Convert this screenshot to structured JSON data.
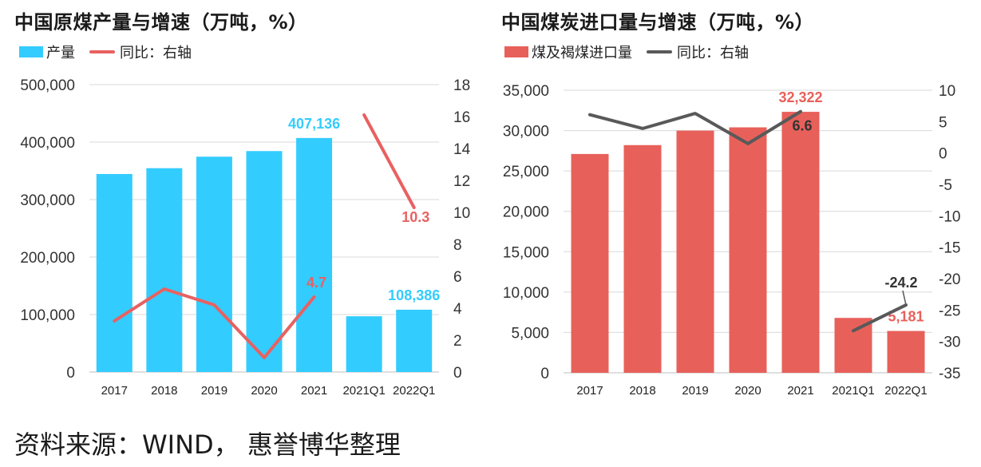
{
  "footer": "资料来源：WIND， 惠誉博华整理",
  "chart_data": [
    {
      "type": "bar",
      "title": "中国原煤产量与增速（万吨，%）",
      "categories": [
        "2017",
        "2018",
        "2019",
        "2020",
        "2021",
        "2021Q1",
        "2022Q1"
      ],
      "series": [
        {
          "name": "产量",
          "type": "bar",
          "axis": "left",
          "color": "#33ccff",
          "values": [
            344500,
            354600,
            374600,
            384400,
            407136,
            97000,
            108386
          ],
          "labels": {
            "4": "407,136",
            "6": "108,386"
          }
        },
        {
          "name": "同比：右轴",
          "type": "line",
          "axis": "right",
          "color": "#e86161",
          "segments": [
            [
              0,
              4
            ],
            [
              5,
              6
            ]
          ],
          "values": [
            3.2,
            5.2,
            4.2,
            0.9,
            4.7,
            16.1,
            10.3
          ],
          "labels": {
            "4": "4.7",
            "6": "10.3"
          }
        }
      ],
      "y_left": {
        "min": 0,
        "max": 500000,
        "ticks": [
          "0",
          "100,000",
          "200,000",
          "300,000",
          "400,000",
          "500,000"
        ]
      },
      "y_right": {
        "min": 0,
        "max": 18,
        "ticks": [
          "0",
          "2",
          "4",
          "6",
          "8",
          "10",
          "12",
          "14",
          "16",
          "18"
        ]
      },
      "grid": true,
      "legend": "top-left"
    },
    {
      "type": "bar",
      "title": "中国煤炭进口量与增速（万吨，%）",
      "categories": [
        "2017",
        "2018",
        "2019",
        "2020",
        "2021",
        "2021Q1",
        "2022Q1"
      ],
      "series": [
        {
          "name": "煤及褐煤进口量",
          "type": "bar",
          "axis": "left",
          "color": "#e8605a",
          "values": [
            27100,
            28200,
            30000,
            30400,
            32322,
            6800,
            5181
          ],
          "labels": {
            "4": "32,322",
            "6": "5,181"
          }
        },
        {
          "name": "同比：右轴",
          "type": "line",
          "axis": "right",
          "color": "#595959",
          "segments": [
            [
              0,
              4
            ],
            [
              5,
              6
            ]
          ],
          "values": [
            6.1,
            3.9,
            6.3,
            1.5,
            6.6,
            -28.3,
            -24.2
          ],
          "labels": {
            "4": "6.6",
            "6": "-24.2"
          }
        }
      ],
      "y_left": {
        "min": 0,
        "max": 35000,
        "ticks": [
          "0",
          "5,000",
          "10,000",
          "15,000",
          "20,000",
          "25,000",
          "30,000",
          "35,000"
        ]
      },
      "y_right": {
        "min": -35,
        "max": 10,
        "ticks": [
          "-35",
          "-30",
          "-25",
          "-20",
          "-15",
          "-10",
          "-5",
          "0",
          "5",
          "10"
        ]
      },
      "grid": true,
      "legend": "top-left"
    }
  ]
}
